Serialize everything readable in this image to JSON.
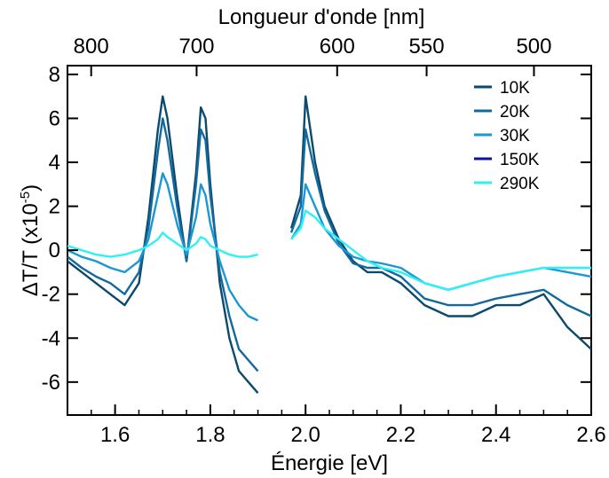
{
  "chart_data": {
    "type": "line",
    "xlabel": "Énergie [eV]",
    "ylabel_main": "ΔT/T (x10",
    "ylabel_sup": "-5",
    "ylabel_close": ")",
    "top_axis_label": "Longueur d'onde [nm]",
    "xlim": [
      1.5,
      2.6
    ],
    "ylim": [
      -7.5,
      8.4
    ],
    "x_ticks": [
      "1.6",
      "1.8",
      "2.0",
      "2.2",
      "2.4",
      "2.6"
    ],
    "x_tick_values": [
      1.6,
      1.8,
      2.0,
      2.2,
      2.4,
      2.6
    ],
    "y_ticks": [
      "8",
      "6",
      "4",
      "2",
      "0",
      "-2",
      "-4",
      "-6"
    ],
    "y_tick_values": [
      8,
      6,
      4,
      2,
      0,
      -2,
      -4,
      -6
    ],
    "top_ticks": [
      "800",
      "700",
      "600",
      "550",
      "500"
    ],
    "top_tick_values_nm": [
      800,
      700,
      600,
      550,
      500
    ],
    "grid": false,
    "legend_position": "top-right",
    "gap_ev": [
      1.91,
      1.97
    ],
    "series": [
      {
        "name": "10K",
        "color": "#0a4a6e",
        "x": [
          1.5,
          1.53,
          1.56,
          1.59,
          1.62,
          1.65,
          1.67,
          1.69,
          1.7,
          1.71,
          1.73,
          1.75,
          1.77,
          1.78,
          1.79,
          1.8,
          1.82,
          1.84,
          1.86,
          1.88,
          1.9,
          1.97,
          1.99,
          2.0,
          2.02,
          2.04,
          2.07,
          2.1,
          2.13,
          2.16,
          2.2,
          2.25,
          2.3,
          2.35,
          2.4,
          2.45,
          2.5,
          2.55,
          2.6
        ],
        "y": [
          -0.5,
          -1.0,
          -1.5,
          -2.0,
          -2.5,
          -1.5,
          1.5,
          5.5,
          7.0,
          6.0,
          2.5,
          -0.5,
          3.5,
          6.5,
          6.0,
          3.0,
          -1.5,
          -4.0,
          -5.5,
          -6.0,
          -6.5,
          1.0,
          2.5,
          7.0,
          4.0,
          2.0,
          0.5,
          -0.5,
          -1.0,
          -1.0,
          -1.5,
          -2.5,
          -3.0,
          -3.0,
          -2.5,
          -2.5,
          -2.0,
          -3.5,
          -4.5
        ]
      },
      {
        "name": "20K",
        "color": "#13699b",
        "x": [
          1.5,
          1.53,
          1.56,
          1.59,
          1.62,
          1.65,
          1.67,
          1.69,
          1.7,
          1.71,
          1.73,
          1.75,
          1.77,
          1.78,
          1.79,
          1.8,
          1.82,
          1.84,
          1.86,
          1.88,
          1.9,
          1.97,
          1.99,
          2.0,
          2.02,
          2.04,
          2.07,
          2.1,
          2.13,
          2.16,
          2.2,
          2.25,
          2.3,
          2.35,
          2.4,
          2.45,
          2.5,
          2.55,
          2.6
        ],
        "y": [
          -0.3,
          -0.8,
          -1.2,
          -1.5,
          -2.0,
          -1.0,
          1.0,
          4.5,
          6.0,
          5.0,
          2.0,
          -0.5,
          3.0,
          5.5,
          5.0,
          2.5,
          -1.0,
          -3.0,
          -4.5,
          -5.0,
          -5.5,
          0.8,
          2.0,
          5.5,
          3.5,
          1.8,
          0.3,
          -0.6,
          -0.8,
          -0.8,
          -1.2,
          -2.2,
          -2.5,
          -2.5,
          -2.2,
          -2.0,
          -1.8,
          -2.5,
          -3.0
        ]
      },
      {
        "name": "30K",
        "color": "#1b97d4",
        "x": [
          1.5,
          1.53,
          1.56,
          1.59,
          1.62,
          1.65,
          1.67,
          1.69,
          1.7,
          1.71,
          1.73,
          1.75,
          1.77,
          1.78,
          1.79,
          1.8,
          1.82,
          1.84,
          1.86,
          1.88,
          1.9,
          1.97,
          1.99,
          2.0,
          2.02,
          2.04,
          2.07,
          2.1,
          2.13,
          2.16,
          2.2,
          2.25,
          2.3,
          2.35,
          2.4,
          2.45,
          2.5,
          2.55,
          2.6
        ],
        "y": [
          0.0,
          -0.3,
          -0.5,
          -0.8,
          -1.0,
          -0.5,
          0.5,
          2.5,
          3.5,
          3.0,
          1.2,
          -0.2,
          1.5,
          3.0,
          2.5,
          1.2,
          -0.5,
          -1.8,
          -2.5,
          -3.0,
          -3.2,
          0.5,
          1.2,
          3.0,
          2.0,
          1.0,
          0.2,
          -0.3,
          -0.5,
          -0.6,
          -0.8,
          -1.5,
          -1.8,
          -1.5,
          -1.2,
          -1.0,
          -0.8,
          -1.0,
          -1.2
        ]
      },
      {
        "name": "150K",
        "color": "#10109e",
        "x": [],
        "y": []
      },
      {
        "name": "290K",
        "color": "#2ff0f5",
        "x": [
          1.5,
          1.53,
          1.56,
          1.59,
          1.62,
          1.65,
          1.67,
          1.69,
          1.7,
          1.71,
          1.73,
          1.75,
          1.77,
          1.78,
          1.79,
          1.8,
          1.82,
          1.84,
          1.86,
          1.88,
          1.9,
          1.97,
          1.99,
          2.0,
          2.02,
          2.04,
          2.07,
          2.1,
          2.13,
          2.16,
          2.2,
          2.25,
          2.3,
          2.35,
          2.4,
          2.45,
          2.5,
          2.55,
          2.6
        ],
        "y": [
          0.2,
          0.0,
          -0.2,
          -0.3,
          -0.2,
          0.0,
          0.2,
          0.5,
          0.8,
          0.6,
          0.3,
          0.0,
          0.3,
          0.6,
          0.5,
          0.2,
          0.0,
          -0.2,
          -0.3,
          -0.3,
          -0.2,
          0.5,
          1.0,
          1.8,
          1.5,
          1.0,
          0.5,
          0.0,
          -0.5,
          -0.8,
          -1.0,
          -1.5,
          -1.8,
          -1.5,
          -1.2,
          -1.0,
          -0.8,
          -0.8,
          -0.8
        ]
      }
    ]
  }
}
